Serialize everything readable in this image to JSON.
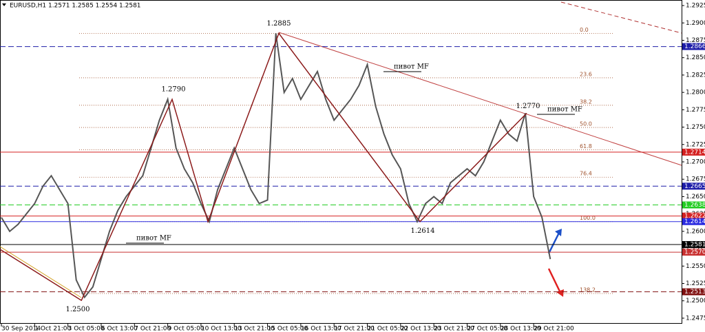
{
  "chart_data": {
    "type": "line",
    "title": "EURUSD,H1  1.2571 1.2585 1.2554 1.2581",
    "categories": [
      "30 Sep 2014",
      null,
      null,
      null,
      "1 Oct 21:00",
      null,
      null,
      null,
      "3 Oct 05:00",
      null,
      null,
      null,
      "6 Oct 13:00",
      null,
      null,
      null,
      "7 Oct 21:00",
      null,
      null,
      null,
      "9 Oct 05:00",
      null,
      null,
      null,
      "10 Oct 13:00",
      null,
      null,
      null,
      "13 Oct 21:00",
      null,
      null,
      null,
      "15 Oct 05:00",
      null,
      null,
      null,
      "16 Oct 13:00",
      null,
      null,
      null,
      "17 Oct 21:00",
      null,
      null,
      null,
      "21 Oct 05:00",
      null,
      null,
      null,
      "22 Oct 13:00",
      null,
      null,
      null,
      "23 Oct 21:00",
      null,
      null,
      null,
      "27 Oct 05:00",
      null,
      null,
      null,
      "28 Oct 13:00",
      null,
      null,
      null,
      "29 Oct 21:00",
      null,
      null,
      null,
      null,
      null,
      null,
      null,
      null,
      null,
      null,
      null,
      null,
      null,
      null,
      null,
      null,
      null
    ],
    "series": [
      {
        "color": "#555555",
        "values": [
          1.262,
          1.26,
          1.261,
          1.2625,
          1.264,
          1.2665,
          1.268,
          1.266,
          1.264,
          1.253,
          1.2505,
          1.252,
          1.256,
          1.26,
          1.263,
          1.265,
          1.2665,
          1.268,
          1.272,
          1.276,
          1.279,
          1.272,
          1.269,
          1.267,
          1.264,
          1.2614,
          1.266,
          1.269,
          1.272,
          1.269,
          1.266,
          1.264,
          1.2645,
          1.2885,
          1.28,
          1.282,
          1.279,
          1.281,
          1.283,
          1.279,
          1.276,
          1.2775,
          1.279,
          1.281,
          1.284,
          1.278,
          1.274,
          1.271,
          1.269,
          1.264,
          1.2614,
          1.264,
          1.265,
          1.264,
          1.267,
          1.268,
          1.269,
          1.268,
          1.27,
          1.273,
          1.276,
          1.274,
          1.273,
          1.277,
          1.265,
          1.262,
          1.256,
          null,
          null,
          null,
          null,
          null,
          null,
          null,
          null,
          null,
          null,
          null,
          null,
          null,
          null,
          null
        ]
      }
    ],
    "ylim": [
      1.2467,
      1.2933
    ],
    "yticks": [
      1.2475,
      {
        "value": 1.25,
        "label": "1.2500"
      },
      1.2525,
      {
        "value": 1.255,
        "label": "1.2550"
      },
      1.2575,
      {
        "value": 1.26,
        "label": "1.2600"
      },
      1.2625,
      {
        "value": 1.265,
        "label": "1.2650"
      },
      1.2675,
      {
        "value": 1.27,
        "label": "1.2700"
      },
      1.2725,
      {
        "value": 1.275,
        "label": "1.2750"
      },
      1.2775,
      {
        "value": 1.28,
        "label": "1.2800"
      },
      1.2825,
      {
        "value": 1.285,
        "label": "1.2850"
      },
      1.2875,
      {
        "value": 1.29,
        "label": "1.2900"
      },
      1.2925
    ],
    "levels": [
      {
        "value": 1.2866,
        "label": "1.2866",
        "color": "#1c1ca8",
        "dashed": true
      },
      {
        "value": 1.2714,
        "label": "1.2714",
        "color": "#d42020",
        "dashed": false
      },
      {
        "value": 1.2665,
        "label": "1.2665",
        "color": "#1c1ca8",
        "dashed": true
      },
      {
        "value": 1.2638,
        "label": "1.2638",
        "color": "#22cc22",
        "dashed": true
      },
      {
        "value": 1.2622,
        "label": "1.2622",
        "color": "#d42020",
        "dashed": false
      },
      {
        "value": 1.2614,
        "label": "1.2614",
        "color": "#2a2ae0",
        "dashed": false
      },
      {
        "value": 1.2581,
        "label": "1.2581",
        "color": "#000000",
        "dashed": false
      },
      {
        "value": 1.257,
        "label": "1.2570",
        "color": "#c83030",
        "dashed": false
      },
      {
        "value": 1.2513,
        "label": "1.2513",
        "color": "#801010",
        "dashed": true
      }
    ],
    "fib": {
      "high": 1.2885,
      "low": 1.2614,
      "color": "#a0522d",
      "levels": [
        {
          "value": 0,
          "label": "0.0"
        },
        23.6,
        38.2,
        {
          "value": 50,
          "label": "50.0"
        },
        61.8,
        76.4,
        {
          "value": 100,
          "label": "100.0"
        },
        138.2
      ]
    },
    "zigzag": {
      "color": "#8b1a1a",
      "values": [
        1.25,
        1.279,
        1.2614,
        1.2885,
        1.2614,
        1.277
      ]
    },
    "annotations": [
      {
        "value": 1.2885,
        "label": "1.2885"
      },
      {
        "value": 1.279,
        "label": "1.2790"
      },
      {
        "value": 1.277,
        "label": "1.2770"
      },
      {
        "value": 1.2614,
        "label": "1.2614"
      },
      {
        "value": 1.25,
        "label": "1.2500"
      }
    ],
    "pivot_labels": [
      "пивот MF",
      "пивот MF",
      "пивот MF"
    ]
  }
}
